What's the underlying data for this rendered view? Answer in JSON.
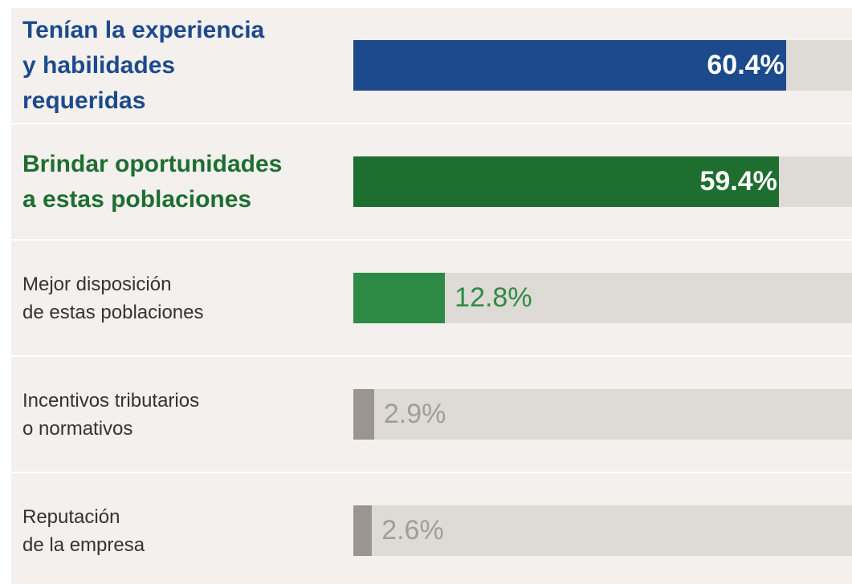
{
  "chart_data": {
    "type": "bar",
    "categories": [
      "Tenían la experiencia\ny habilidades\nrequeridas",
      "Brindar oportunidades\na estas poblaciones",
      "Mejor disposición\nde estas poblaciones",
      "Incentivos tributarios\no normativos",
      "Reputación\nde la empresa"
    ],
    "values": [
      60.4,
      59.4,
      12.8,
      2.9,
      2.6
    ],
    "value_labels": [
      "60.4%",
      "59.4%",
      "12.8%",
      "2.9%",
      "2.6%"
    ],
    "colors": [
      "#1c4a8c",
      "#1e6e30",
      "#2e8b45",
      "#9a9590",
      "#9a9590"
    ],
    "category_colors": [
      "#1c4a8c",
      "#1e6e30",
      "#333333",
      "#333333",
      "#333333"
    ],
    "value_label_colors": [
      "#ffffff",
      "#ffffff",
      "#2e8b45",
      "#a19c98",
      "#a19c98"
    ],
    "bold": [
      true,
      true,
      false,
      false,
      false
    ],
    "xlim": [
      0,
      100
    ]
  }
}
